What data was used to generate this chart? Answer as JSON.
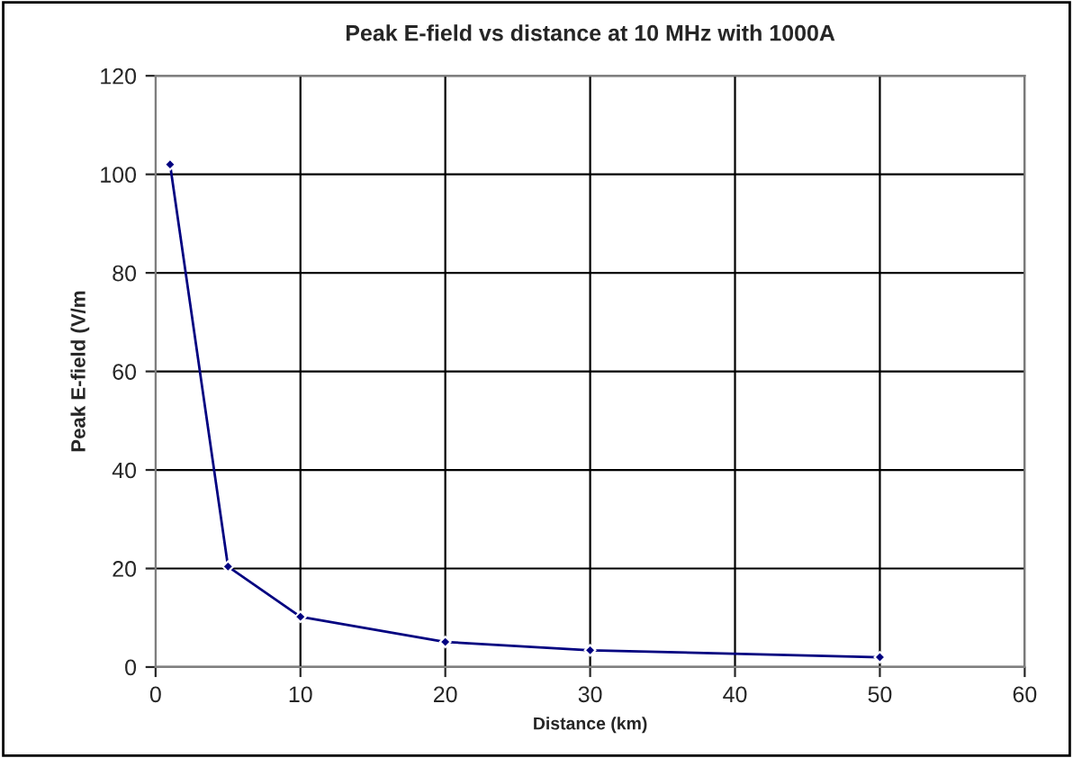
{
  "chart_data": {
    "type": "line",
    "title": "Peak E-field vs distance at 10 MHz with 1000A",
    "xlabel": "Distance (km)",
    "ylabel": "Peak E-field (V/m",
    "x": [
      1,
      5,
      10,
      20,
      30,
      50
    ],
    "series": [
      {
        "color": "#000080",
        "values": [
          102,
          20.4,
          10.2,
          5.1,
          3.4,
          2.0
        ]
      }
    ],
    "xlim": [
      0,
      60
    ],
    "xticks": [
      0,
      10,
      20,
      30,
      40,
      50,
      60
    ],
    "ylim": [
      0,
      120
    ],
    "yticks": [
      0,
      20,
      40,
      60,
      80,
      100,
      120
    ],
    "grid": true,
    "marker": "diamond",
    "line_style": "solid",
    "legend": false
  }
}
